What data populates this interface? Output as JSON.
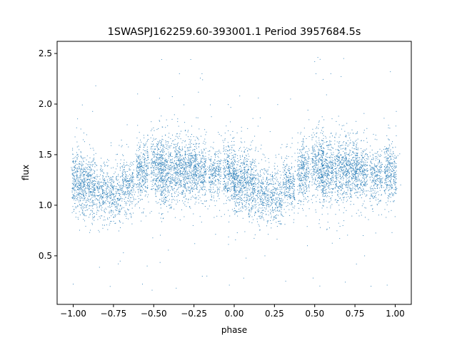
{
  "chart_data": {
    "type": "scatter",
    "title": "1SWASPJ162259.60-393001.1 Period 3957684.5s",
    "xlabel": "phase",
    "ylabel": "flux",
    "xlim": [
      -1.1,
      1.1
    ],
    "ylim": [
      0.02,
      2.62
    ],
    "xticks": [
      -1.0,
      -0.75,
      -0.5,
      -0.25,
      0.0,
      0.25,
      0.5,
      0.75,
      1.0
    ],
    "xtick_labels": [
      "−1.00",
      "−0.75",
      "−0.50",
      "−0.25",
      "0.00",
      "0.25",
      "0.50",
      "0.75",
      "1.00"
    ],
    "yticks": [
      0.5,
      1.0,
      1.5,
      2.0,
      2.5
    ],
    "ytick_labels": [
      "0.5",
      "1.0",
      "1.5",
      "2.0",
      "2.5"
    ],
    "grid": false,
    "marker_color": "#1f77b4",
    "series": [
      {
        "description": "dense light-curve point cloud folded over phase -1..1 (duplicated half-cycle), clustered in vertical bands",
        "band_centers_x": [
          -0.97,
          -0.9,
          -0.82,
          -0.74,
          -0.66,
          -0.57,
          -0.48,
          -0.42,
          -0.34,
          -0.27,
          -0.21,
          -0.12,
          -0.03,
          0.03,
          0.1,
          0.18,
          0.26,
          0.34,
          0.43,
          0.52,
          0.58,
          0.66,
          0.73,
          0.79,
          0.88,
          0.97
        ],
        "band_median_y": [
          1.22,
          1.18,
          1.12,
          1.08,
          1.2,
          1.34,
          1.38,
          1.32,
          1.35,
          1.36,
          1.32,
          1.3,
          1.32,
          1.22,
          1.18,
          1.12,
          1.08,
          1.2,
          1.34,
          1.38,
          1.32,
          1.35,
          1.36,
          1.32,
          1.3,
          1.32
        ],
        "band_spread_y": [
          0.14,
          0.15,
          0.13,
          0.12,
          0.12,
          0.14,
          0.15,
          0.16,
          0.15,
          0.14,
          0.13,
          0.12,
          0.14,
          0.14,
          0.15,
          0.13,
          0.12,
          0.12,
          0.14,
          0.15,
          0.16,
          0.15,
          0.14,
          0.13,
          0.12,
          0.14
        ],
        "band_point_count": [
          330,
          300,
          230,
          220,
          230,
          300,
          320,
          340,
          320,
          300,
          260,
          230,
          300,
          330,
          300,
          230,
          220,
          230,
          300,
          320,
          340,
          320,
          300,
          260,
          230,
          300
        ],
        "bright_outliers": [
          {
            "x": -0.86,
            "y": 2.18
          },
          {
            "x": -0.45,
            "y": 2.44
          },
          {
            "x": -0.27,
            "y": 2.44
          },
          {
            "x": 0.5,
            "y": 2.42
          },
          {
            "x": 0.68,
            "y": 2.45
          },
          {
            "x": 0.97,
            "y": 2.32
          },
          {
            "x": -0.34,
            "y": 2.3
          },
          {
            "x": 0.6,
            "y": 2.3
          },
          {
            "x": 0.15,
            "y": 2.06
          },
          {
            "x": -0.2,
            "y": 2.3
          },
          {
            "x": -0.6,
            "y": 2.1
          },
          {
            "x": 0.35,
            "y": 2.05
          }
        ],
        "faint_outliers": [
          {
            "x": -1.0,
            "y": 0.22
          },
          {
            "x": -0.57,
            "y": 0.22
          },
          {
            "x": -0.36,
            "y": 0.18
          },
          {
            "x": -0.51,
            "y": 0.16
          },
          {
            "x": -0.03,
            "y": 0.21
          },
          {
            "x": 0.49,
            "y": 0.28
          },
          {
            "x": 0.85,
            "y": 0.2
          },
          {
            "x": 0.95,
            "y": 0.21
          },
          {
            "x": -0.17,
            "y": 0.3
          },
          {
            "x": 0.32,
            "y": 0.25
          },
          {
            "x": 0.69,
            "y": 0.24
          },
          {
            "x": -0.72,
            "y": 0.42
          }
        ]
      }
    ]
  }
}
